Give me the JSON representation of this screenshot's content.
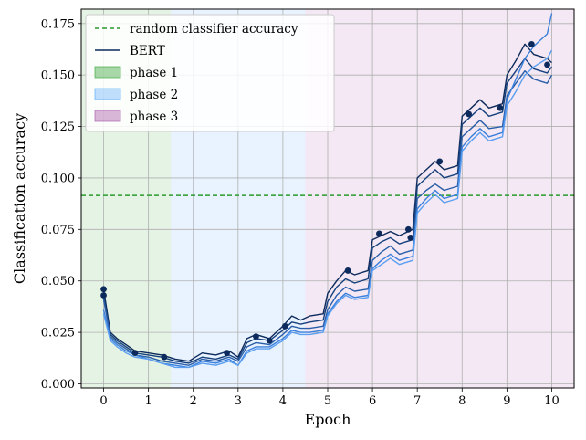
{
  "chart_data": {
    "type": "line",
    "xlabel": "Epoch",
    "ylabel": "Classification accuracy",
    "xlim": [
      -0.5,
      10.5
    ],
    "ylim": [
      -0.002,
      0.182
    ],
    "xticks": [
      0,
      1,
      2,
      3,
      4,
      5,
      6,
      7,
      8,
      9,
      10
    ],
    "yticks": [
      0.0,
      0.025,
      0.05,
      0.075,
      0.1,
      0.125,
      0.15,
      0.175
    ],
    "ytick_labels": [
      "0.000",
      "0.025",
      "0.050",
      "0.075",
      "0.100",
      "0.125",
      "0.150",
      "0.175"
    ],
    "grid": true,
    "legend_position": "top-left",
    "reference_line": {
      "name": "random classifier accuracy",
      "y": 0.0915,
      "color": "#2a9a2a"
    },
    "phases": [
      {
        "name": "phase 1",
        "from": -0.5,
        "to": 1.5,
        "color": "#2ca02c"
      },
      {
        "name": "phase 2",
        "from": 1.5,
        "to": 4.5,
        "color": "#4da3ff"
      },
      {
        "name": "phase 3",
        "from": 4.5,
        "to": 10.5,
        "color": "#a44ca4"
      }
    ],
    "legend_entries": [
      "random classifier accuracy",
      "BERT",
      "phase 1",
      "phase 2",
      "phase 3"
    ],
    "series": [
      {
        "name": "BERT",
        "color": "#0d2a5c",
        "x": [
          0,
          0.15,
          0.3,
          0.5,
          0.7,
          1.0,
          1.3,
          1.6,
          1.9,
          2.2,
          2.5,
          2.8,
          3.0,
          3.2,
          3.4,
          3.7,
          4.0,
          4.2,
          4.4,
          4.6,
          4.9,
          5.0,
          5.2,
          5.4,
          5.6,
          5.9,
          6.0,
          6.2,
          6.4,
          6.6,
          6.9,
          7.0,
          7.2,
          7.4,
          7.6,
          7.9,
          8.0,
          8.2,
          8.4,
          8.6,
          8.9,
          9.0,
          9.2,
          9.4,
          9.6,
          9.9,
          10.0
        ],
        "values": [
          0.046,
          0.025,
          0.022,
          0.019,
          0.016,
          0.015,
          0.014,
          0.012,
          0.011,
          0.015,
          0.014,
          0.016,
          0.013,
          0.022,
          0.024,
          0.022,
          0.028,
          0.033,
          0.031,
          0.033,
          0.034,
          0.044,
          0.05,
          0.055,
          0.053,
          0.055,
          0.07,
          0.072,
          0.074,
          0.072,
          0.075,
          0.1,
          0.104,
          0.108,
          0.104,
          0.106,
          0.13,
          0.134,
          0.138,
          0.134,
          0.136,
          0.15,
          0.157,
          0.165,
          0.16,
          0.158,
          0.156
        ]
      },
      {
        "name": "",
        "color": "#16407d",
        "x": [
          0,
          0.15,
          0.3,
          0.5,
          0.7,
          1.0,
          1.3,
          1.6,
          1.9,
          2.2,
          2.5,
          2.8,
          3.0,
          3.2,
          3.4,
          3.7,
          4.0,
          4.2,
          4.4,
          4.6,
          4.9,
          5.0,
          5.2,
          5.4,
          5.6,
          5.9,
          6.0,
          6.2,
          6.4,
          6.6,
          6.9,
          7.0,
          7.2,
          7.4,
          7.6,
          7.9,
          8.0,
          8.2,
          8.4,
          8.6,
          8.9,
          9.0,
          9.2,
          9.4,
          9.6,
          9.9,
          10.0
        ],
        "values": [
          0.043,
          0.024,
          0.021,
          0.018,
          0.015,
          0.014,
          0.013,
          0.011,
          0.01,
          0.013,
          0.012,
          0.014,
          0.012,
          0.02,
          0.022,
          0.021,
          0.026,
          0.03,
          0.029,
          0.03,
          0.031,
          0.04,
          0.047,
          0.051,
          0.049,
          0.051,
          0.066,
          0.069,
          0.071,
          0.068,
          0.07,
          0.096,
          0.1,
          0.104,
          0.1,
          0.102,
          0.126,
          0.13,
          0.134,
          0.13,
          0.132,
          0.146,
          0.152,
          0.158,
          0.153,
          0.151,
          0.154
        ]
      },
      {
        "name": "",
        "color": "#2a5ea8",
        "x": [
          0,
          0.15,
          0.3,
          0.5,
          0.7,
          1.0,
          1.3,
          1.6,
          1.9,
          2.2,
          2.5,
          2.8,
          3.0,
          3.2,
          3.4,
          3.7,
          4.0,
          4.2,
          4.4,
          4.6,
          4.9,
          5.0,
          5.2,
          5.4,
          5.6,
          5.9,
          6.0,
          6.2,
          6.4,
          6.6,
          6.9,
          7.0,
          7.2,
          7.4,
          7.6,
          7.9,
          8.0,
          8.2,
          8.4,
          8.6,
          8.9,
          9.0,
          9.2,
          9.4,
          9.6,
          9.9,
          10.0
        ],
        "values": [
          0.041,
          0.023,
          0.02,
          0.017,
          0.014,
          0.013,
          0.011,
          0.01,
          0.009,
          0.012,
          0.011,
          0.013,
          0.011,
          0.018,
          0.02,
          0.019,
          0.024,
          0.028,
          0.027,
          0.027,
          0.028,
          0.036,
          0.043,
          0.047,
          0.045,
          0.046,
          0.06,
          0.064,
          0.067,
          0.063,
          0.065,
          0.09,
          0.094,
          0.097,
          0.094,
          0.096,
          0.12,
          0.124,
          0.128,
          0.124,
          0.125,
          0.14,
          0.146,
          0.152,
          0.148,
          0.146,
          0.15
        ]
      },
      {
        "name": "",
        "color": "#3b7fdc",
        "x": [
          0,
          0.15,
          0.3,
          0.5,
          0.7,
          1.0,
          1.3,
          1.6,
          1.9,
          2.2,
          2.5,
          2.8,
          3.0,
          3.2,
          3.4,
          3.7,
          4.0,
          4.2,
          4.4,
          4.6,
          4.9,
          5.0,
          5.2,
          5.4,
          5.6,
          5.9,
          6.0,
          6.2,
          6.4,
          6.6,
          6.9,
          7.0,
          7.2,
          7.4,
          7.6,
          7.9,
          8.0,
          8.2,
          8.4,
          8.6,
          8.9,
          9.0,
          9.2,
          9.4,
          9.6,
          9.9,
          10.0
        ],
        "values": [
          0.036,
          0.022,
          0.019,
          0.016,
          0.014,
          0.012,
          0.01,
          0.009,
          0.008,
          0.011,
          0.01,
          0.012,
          0.009,
          0.016,
          0.018,
          0.018,
          0.022,
          0.026,
          0.025,
          0.025,
          0.026,
          0.034,
          0.04,
          0.044,
          0.042,
          0.043,
          0.056,
          0.06,
          0.063,
          0.06,
          0.062,
          0.085,
          0.09,
          0.094,
          0.09,
          0.092,
          0.115,
          0.12,
          0.124,
          0.12,
          0.122,
          0.138,
          0.148,
          0.158,
          0.164,
          0.17,
          0.18
        ]
      },
      {
        "name": "",
        "color": "#5a9ef0",
        "x": [
          0,
          0.15,
          0.3,
          0.5,
          0.7,
          1.0,
          1.3,
          1.6,
          1.9,
          2.2,
          2.5,
          2.8,
          3.0,
          3.2,
          3.4,
          3.7,
          4.0,
          4.2,
          4.4,
          4.6,
          4.9,
          5.0,
          5.2,
          5.4,
          5.6,
          5.9,
          6.0,
          6.2,
          6.4,
          6.6,
          6.9,
          7.0,
          7.2,
          7.4,
          7.6,
          7.9,
          8.0,
          8.2,
          8.4,
          8.6,
          8.9,
          9.0,
          9.2,
          9.4,
          9.6,
          9.9,
          10.0
        ],
        "values": [
          0.034,
          0.021,
          0.018,
          0.015,
          0.013,
          0.012,
          0.01,
          0.008,
          0.008,
          0.01,
          0.009,
          0.011,
          0.009,
          0.015,
          0.017,
          0.017,
          0.021,
          0.025,
          0.024,
          0.024,
          0.025,
          0.033,
          0.039,
          0.043,
          0.041,
          0.042,
          0.055,
          0.058,
          0.061,
          0.058,
          0.06,
          0.083,
          0.088,
          0.092,
          0.088,
          0.09,
          0.113,
          0.118,
          0.122,
          0.118,
          0.12,
          0.135,
          0.142,
          0.15,
          0.154,
          0.158,
          0.162
        ]
      }
    ],
    "markers": [
      {
        "x": 0,
        "y": 0.046
      },
      {
        "x": 0,
        "y": 0.043
      },
      {
        "x": 0.7,
        "y": 0.015
      },
      {
        "x": 1.35,
        "y": 0.013
      },
      {
        "x": 2.75,
        "y": 0.015
      },
      {
        "x": 3.4,
        "y": 0.023
      },
      {
        "x": 3.7,
        "y": 0.021
      },
      {
        "x": 4.05,
        "y": 0.028
      },
      {
        "x": 5.45,
        "y": 0.055
      },
      {
        "x": 6.15,
        "y": 0.073
      },
      {
        "x": 6.8,
        "y": 0.075
      },
      {
        "x": 6.85,
        "y": 0.071
      },
      {
        "x": 7.5,
        "y": 0.108
      },
      {
        "x": 8.15,
        "y": 0.131
      },
      {
        "x": 8.85,
        "y": 0.134
      },
      {
        "x": 9.55,
        "y": 0.165
      },
      {
        "x": 9.9,
        "y": 0.155
      }
    ]
  }
}
